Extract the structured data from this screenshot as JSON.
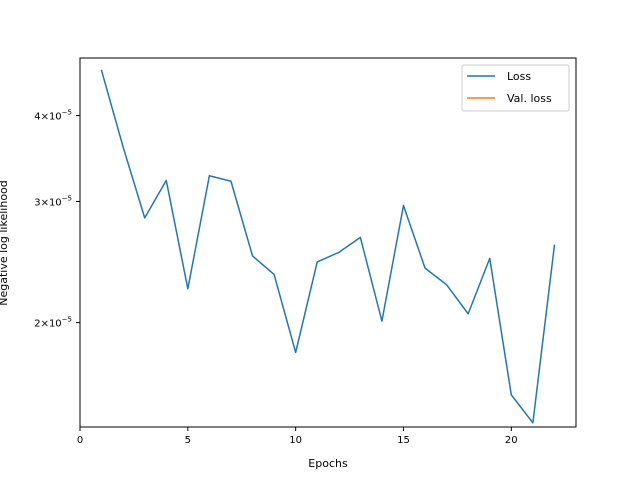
{
  "chart_data": {
    "type": "line",
    "xlabel": "Epochs",
    "ylabel": "Negative log likelihood",
    "xlim": [
      0,
      23
    ],
    "ylim": [
      1.41e-05,
      4.85e-05
    ],
    "yscale": "log",
    "grid": false,
    "legend_placement": "top-right",
    "x_ticks": [
      0,
      5,
      10,
      15,
      20
    ],
    "y_ticks": [
      {
        "value": 2e-05,
        "mantissa": "2",
        "exp": "−5"
      },
      {
        "value": 3e-05,
        "mantissa": "3",
        "exp": "−5"
      },
      {
        "value": 4e-05,
        "mantissa": "4",
        "exp": "−5"
      }
    ],
    "series": [
      {
        "name": "Loss",
        "color": "#1f77b4",
        "x": [
          1,
          2,
          3,
          4,
          5,
          6,
          7,
          8,
          9,
          10,
          11,
          12,
          13,
          14,
          15,
          16,
          17,
          18,
          19,
          20,
          21,
          22
        ],
        "values": [
          4.65e-05,
          3.6e-05,
          2.84e-05,
          3.22e-05,
          2.24e-05,
          3.27e-05,
          3.21e-05,
          2.5e-05,
          2.35e-05,
          1.81e-05,
          2.45e-05,
          2.53e-05,
          2.66e-05,
          2.01e-05,
          2.96e-05,
          2.4e-05,
          2.27e-05,
          2.06e-05,
          2.48e-05,
          1.57e-05,
          1.43e-05,
          2.59e-05
        ]
      },
      {
        "name": "Val. loss",
        "color": "#ff7f0e",
        "x": [],
        "values": []
      }
    ]
  }
}
